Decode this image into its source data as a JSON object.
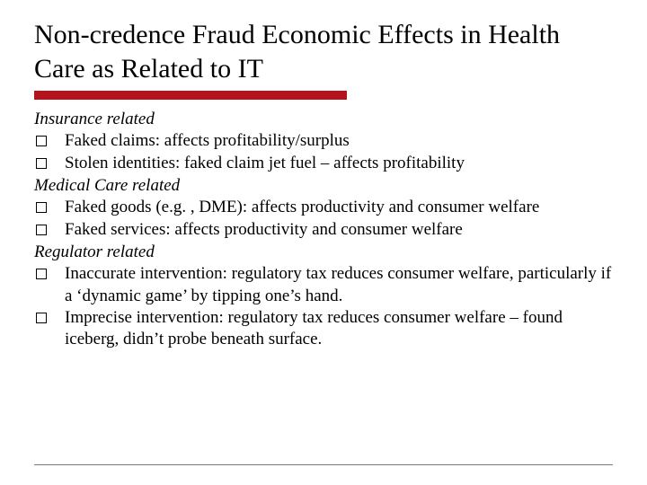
{
  "title": "Non-credence Fraud Economic Effects in Health Care as Related to IT",
  "accent_color": "#b5121b",
  "sections": {
    "s0": {
      "heading": "Insurance related",
      "b0": "Faked claims: affects profitability/surplus",
      "b1": "Stolen identities: faked claim jet fuel – affects profitability"
    },
    "s1": {
      "heading": "Medical Care related",
      "b0": "Faked goods (e.g. , DME): affects productivity and consumer welfare",
      "b1": "Faked services: affects productivity and consumer welfare"
    },
    "s2": {
      "heading": "Regulator related",
      "b0": "Inaccurate intervention: regulatory tax reduces consumer welfare, particularly if a ‘dynamic game’ by tipping one’s hand.",
      "b1": "Imprecise intervention: regulatory tax reduces consumer welfare – found iceberg, didn’t probe beneath surface."
    }
  }
}
